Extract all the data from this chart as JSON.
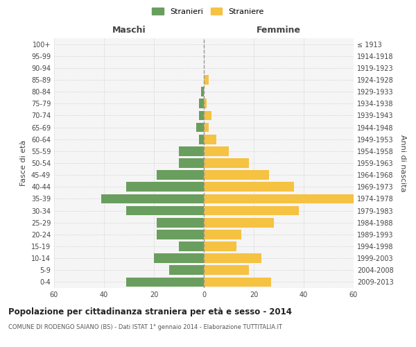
{
  "age_groups": [
    "0-4",
    "5-9",
    "10-14",
    "15-19",
    "20-24",
    "25-29",
    "30-34",
    "35-39",
    "40-44",
    "45-49",
    "50-54",
    "55-59",
    "60-64",
    "65-69",
    "70-74",
    "75-79",
    "80-84",
    "85-89",
    "90-94",
    "95-99",
    "100+"
  ],
  "birth_years": [
    "2009-2013",
    "2004-2008",
    "1999-2003",
    "1994-1998",
    "1989-1993",
    "1984-1988",
    "1979-1983",
    "1974-1978",
    "1969-1973",
    "1964-1968",
    "1959-1963",
    "1954-1958",
    "1949-1953",
    "1944-1948",
    "1939-1943",
    "1934-1938",
    "1929-1933",
    "1924-1928",
    "1919-1923",
    "1914-1918",
    "≤ 1913"
  ],
  "males": [
    31,
    14,
    20,
    10,
    19,
    19,
    31,
    41,
    31,
    19,
    10,
    10,
    2,
    3,
    2,
    2,
    1,
    0,
    0,
    0,
    0
  ],
  "females": [
    27,
    18,
    23,
    13,
    15,
    28,
    38,
    60,
    36,
    26,
    18,
    10,
    5,
    2,
    3,
    1,
    0,
    2,
    0,
    0,
    0
  ],
  "male_color": "#6a9e5e",
  "female_color": "#f5c242",
  "background_color": "#f5f5f5",
  "grid_color": "#cccccc",
  "bar_height": 0.8,
  "xlim": 60,
  "title": "Popolazione per cittadinanza straniera per età e sesso - 2014",
  "subtitle": "COMUNE DI RODENGO SAIANO (BS) - Dati ISTAT 1° gennaio 2014 - Elaborazione TUTTITALIA.IT",
  "xlabel_left": "Maschi",
  "xlabel_right": "Femmine",
  "ylabel_left": "Fasce di età",
  "ylabel_right": "Anni di nascita",
  "legend_male": "Stranieri",
  "legend_female": "Straniere",
  "center_line_color": "#999999",
  "xticks": [
    -60,
    -40,
    -20,
    0,
    20,
    40,
    60
  ]
}
